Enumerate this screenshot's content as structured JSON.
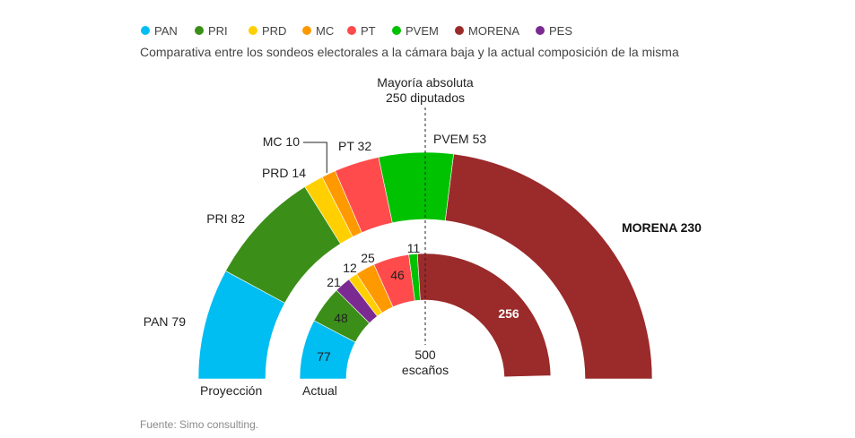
{
  "subtitle": "Comparativa entre los sondeos electorales a la cámara baja y la actual composición de la misma",
  "source": "Fuente: Simo consulting.",
  "majority": {
    "line1": "Mayoría absoluta",
    "line2": "250 diputados"
  },
  "total": {
    "line1": "500",
    "line2": "escaños"
  },
  "chart_data": {
    "type": "semicircle-parliament",
    "total_seats": 500,
    "majority_seats": 250,
    "parties": [
      {
        "name": "PAN",
        "color": "#00bdf2"
      },
      {
        "name": "PRI",
        "color": "#3b8f18"
      },
      {
        "name": "PRD",
        "color": "#ffcf00"
      },
      {
        "name": "MC",
        "color": "#ff9900"
      },
      {
        "name": "PT",
        "color": "#ff4b4b"
      },
      {
        "name": "PVEM",
        "color": "#00c200"
      },
      {
        "name": "MORENA",
        "color": "#9b2a2a"
      },
      {
        "name": "PES",
        "color": "#7b2a91"
      }
    ],
    "series": [
      {
        "name": "Proyección",
        "values": [
          {
            "party": "PAN",
            "seats": 79,
            "label": "PAN 79"
          },
          {
            "party": "PRI",
            "seats": 82,
            "label": "PRI 82"
          },
          {
            "party": "PRD",
            "seats": 14,
            "label": "PRD 14"
          },
          {
            "party": "MC",
            "seats": 10,
            "label": "MC 10"
          },
          {
            "party": "PT",
            "seats": 32,
            "label": "PT 32"
          },
          {
            "party": "PVEM",
            "seats": 53,
            "label": "PVEM 53"
          },
          {
            "party": "MORENA",
            "seats": 230,
            "label": "MORENA 230"
          }
        ]
      },
      {
        "name": "Actual",
        "values": [
          {
            "party": "PAN",
            "seats": 77,
            "label": "77"
          },
          {
            "party": "PRI",
            "seats": 48,
            "label": "48"
          },
          {
            "party": "PES",
            "seats": 21,
            "label": "21"
          },
          {
            "party": "PRD",
            "seats": 12,
            "label": "12"
          },
          {
            "party": "MC",
            "seats": 25,
            "label": "25"
          },
          {
            "party": "PT",
            "seats": 46,
            "label": "46"
          },
          {
            "party": "PVEM",
            "seats": 11,
            "label": "11"
          },
          {
            "party": "MORENA",
            "seats": 256,
            "label": "256"
          }
        ]
      }
    ]
  }
}
